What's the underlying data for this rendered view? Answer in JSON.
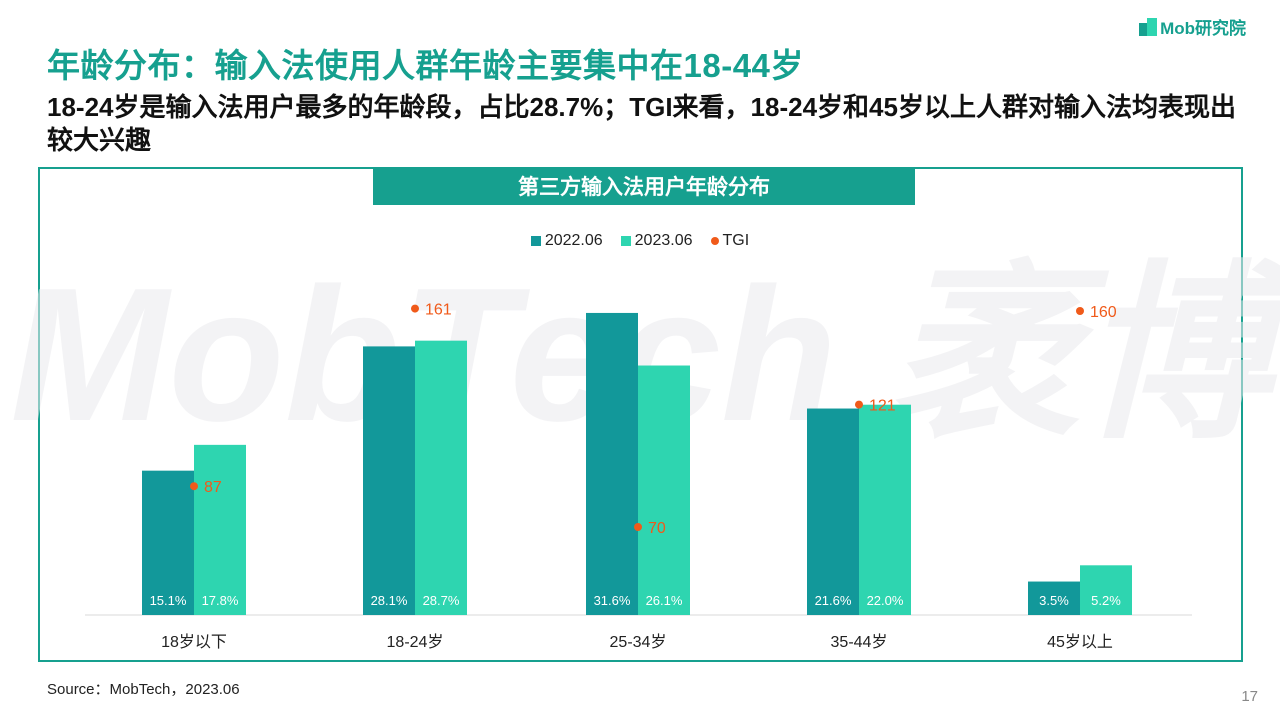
{
  "logo": {
    "text": "Mob研究院"
  },
  "title": "年龄分布：输入法使用人群年龄主要集中在18-44岁",
  "subtitle": "18-24岁是输入法用户最多的年龄段，占比28.7%；TGI来看，18-24岁和45岁以上人群对输入法均表现出较大兴趣",
  "watermark": "MobTech 袤博",
  "source": "Source：MobTech，2023.06",
  "page_number": "17",
  "colors": {
    "accent": "#16a08f",
    "series_2022": "#12989a",
    "series_2023": "#2ed5b0",
    "tgi": "#f05a1a"
  },
  "chart_data": {
    "type": "bar",
    "title": "第三方输入法用户年龄分布",
    "categories": [
      "18岁以下",
      "18-24岁",
      "25-34岁",
      "35-44岁",
      "45岁以上"
    ],
    "series": [
      {
        "name": "2022.06",
        "values": [
          15.1,
          28.1,
          31.6,
          21.6,
          3.5
        ],
        "labels": [
          "15.1%",
          "28.1%",
          "31.6%",
          "21.6%",
          "3.5%"
        ]
      },
      {
        "name": "2023.06",
        "values": [
          17.8,
          28.7,
          26.1,
          22.0,
          5.2
        ],
        "labels": [
          "17.8%",
          "28.7%",
          "26.1%",
          "22.0%",
          "5.2%"
        ]
      }
    ],
    "tgi": {
      "name": "TGI",
      "values": [
        87,
        161,
        70,
        121,
        160
      ]
    },
    "ylim": [
      0,
      34
    ],
    "tgi_ylim": [
      0,
      200
    ],
    "legend_position": "top-center",
    "grid": false
  }
}
